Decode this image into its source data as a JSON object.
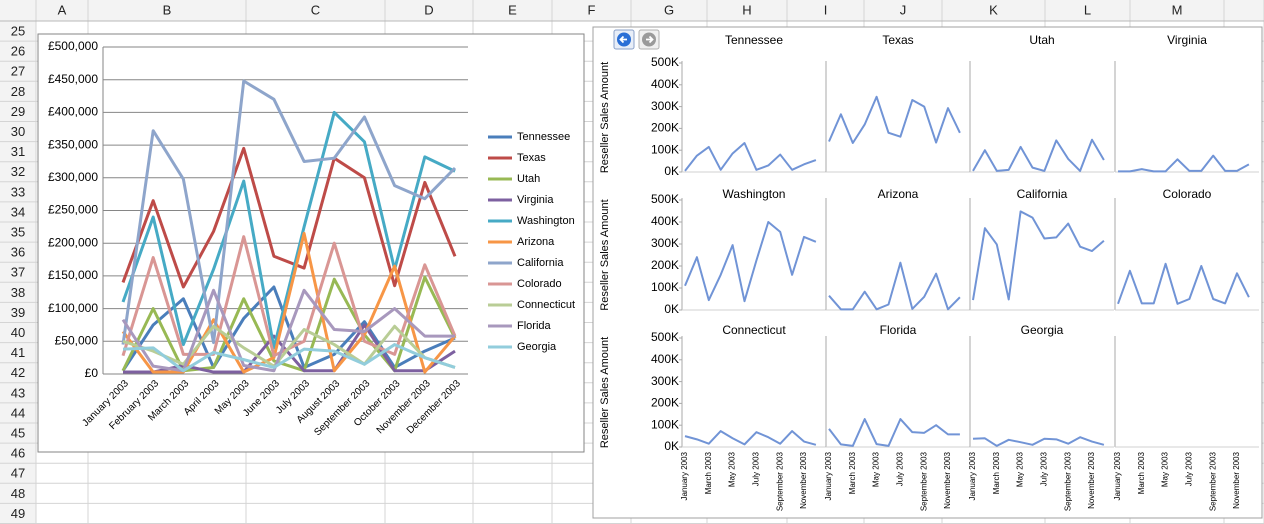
{
  "spreadsheet": {
    "columns": [
      "A",
      "B",
      "C",
      "D",
      "E",
      "F",
      "G",
      "H",
      "I",
      "J",
      "K",
      "L",
      "M"
    ],
    "rows": [
      25,
      26,
      27,
      28,
      29,
      30,
      31,
      32,
      33,
      34,
      35,
      36,
      37,
      38,
      39,
      40,
      41,
      42,
      43,
      44,
      45,
      46,
      47,
      48,
      49
    ]
  },
  "chart_data": [
    {
      "type": "line",
      "legend": "right",
      "grid": true,
      "categories": [
        "January 2003",
        "February 2003",
        "March 2003",
        "April 2003",
        "May 2003",
        "June 2003",
        "July 2003",
        "August 2003",
        "September 2003",
        "October 2003",
        "November 2003",
        "December 2003"
      ],
      "ylim": [
        0,
        500000
      ],
      "yticks": [
        {
          "value": 0,
          "label": "£0"
        },
        {
          "value": 50000,
          "label": "£50,000"
        },
        {
          "value": 100000,
          "label": "£100,000"
        },
        {
          "value": 150000,
          "label": "£150,000"
        },
        {
          "value": 200000,
          "label": "£200,000"
        },
        {
          "value": 250000,
          "label": "£250,000"
        },
        {
          "value": 300000,
          "label": "£300,000"
        },
        {
          "value": 350000,
          "label": "£350,000"
        },
        {
          "value": 400000,
          "label": "£400,000"
        },
        {
          "value": 450000,
          "label": "£450,000"
        },
        {
          "value": 500000,
          "label": "£500,000"
        }
      ],
      "series": [
        {
          "name": "Tennessee",
          "color": "#4a7ebb",
          "values": [
            5000,
            75000,
            115000,
            10000,
            85000,
            133000,
            10000,
            30000,
            80000,
            10000,
            35000,
            55000
          ]
        },
        {
          "name": "Texas",
          "color": "#be4b48",
          "values": [
            140000,
            265000,
            133000,
            218000,
            345000,
            180000,
            162000,
            330000,
            300000,
            135000,
            293000,
            180000
          ]
        },
        {
          "name": "Utah",
          "color": "#98b954",
          "values": [
            5000,
            100000,
            5000,
            10000,
            115000,
            20000,
            5000,
            145000,
            60000,
            5000,
            148000,
            55000
          ]
        },
        {
          "name": "Virginia",
          "color": "#7d60a0",
          "values": [
            3000,
            3000,
            13000,
            3000,
            3000,
            58000,
            5000,
            5000,
            75000,
            5000,
            5000,
            35000
          ]
        },
        {
          "name": "Washington",
          "color": "#46aac5",
          "values": [
            110000,
            240000,
            45000,
            160000,
            295000,
            40000,
            225000,
            400000,
            355000,
            160000,
            332000,
            310000
          ]
        },
        {
          "name": "Arizona",
          "color": "#f79646",
          "values": [
            65000,
            3000,
            3000,
            83000,
            3000,
            25000,
            215000,
            5000,
            60000,
            165000,
            3000,
            58000
          ]
        },
        {
          "name": "California",
          "color": "#8ea5cb",
          "values": [
            45000,
            372000,
            298000,
            48000,
            448000,
            420000,
            325000,
            330000,
            393000,
            288000,
            268000,
            315000
          ]
        },
        {
          "name": "Colorado",
          "color": "#d99694",
          "values": [
            28000,
            178000,
            30000,
            30000,
            210000,
            28000,
            50000,
            200000,
            50000,
            30000,
            167000,
            58000
          ]
        },
        {
          "name": "Connecticut",
          "color": "#b9cd96",
          "values": [
            50000,
            35000,
            15000,
            73000,
            40000,
            12000,
            68000,
            45000,
            15000,
            73000,
            25000,
            10000
          ]
        },
        {
          "name": "Florida",
          "color": "#a898bd",
          "values": [
            83000,
            12000,
            5000,
            128000,
            13000,
            5000,
            128000,
            68000,
            65000,
            100000,
            58000,
            58000
          ]
        },
        {
          "name": "Georgia",
          "color": "#92cddc",
          "values": [
            38000,
            40000,
            5000,
            33000,
            22000,
            10000,
            38000,
            35000,
            15000,
            45000,
            25000,
            10000
          ]
        }
      ]
    },
    {
      "type": "small-multiples",
      "y_label": "Reseller Sales Amount",
      "color": "#7194d6",
      "categories": [
        "January 2003",
        null,
        "March 2003",
        null,
        "May 2003",
        null,
        "July 2003",
        null,
        "September 2003",
        null,
        "November 2003",
        null
      ],
      "ylim": [
        0,
        500000
      ],
      "yticks": [
        {
          "value": 0,
          "label": "0K"
        },
        {
          "value": 100000,
          "label": "100K"
        },
        {
          "value": 200000,
          "label": "200K"
        },
        {
          "value": 300000,
          "label": "300K"
        },
        {
          "value": 400000,
          "label": "400K"
        },
        {
          "value": 500000,
          "label": "500K"
        }
      ],
      "series": [
        {
          "name": "Tennessee",
          "values": [
            5000,
            75000,
            115000,
            10000,
            85000,
            133000,
            10000,
            30000,
            80000,
            10000,
            35000,
            55000
          ]
        },
        {
          "name": "Texas",
          "values": [
            140000,
            265000,
            133000,
            218000,
            345000,
            180000,
            162000,
            330000,
            300000,
            135000,
            293000,
            180000
          ]
        },
        {
          "name": "Utah",
          "values": [
            5000,
            100000,
            5000,
            10000,
            115000,
            20000,
            5000,
            145000,
            60000,
            5000,
            148000,
            55000
          ]
        },
        {
          "name": "Virginia",
          "values": [
            3000,
            3000,
            13000,
            3000,
            3000,
            58000,
            5000,
            5000,
            75000,
            5000,
            5000,
            35000
          ]
        },
        {
          "name": "Washington",
          "values": [
            110000,
            240000,
            45000,
            160000,
            295000,
            40000,
            225000,
            400000,
            355000,
            160000,
            332000,
            310000
          ]
        },
        {
          "name": "Arizona",
          "values": [
            65000,
            3000,
            3000,
            83000,
            3000,
            25000,
            215000,
            5000,
            60000,
            165000,
            3000,
            58000
          ]
        },
        {
          "name": "California",
          "values": [
            45000,
            372000,
            298000,
            48000,
            448000,
            420000,
            325000,
            330000,
            393000,
            288000,
            268000,
            315000
          ]
        },
        {
          "name": "Colorado",
          "values": [
            28000,
            178000,
            30000,
            30000,
            210000,
            28000,
            50000,
            200000,
            50000,
            30000,
            167000,
            58000
          ]
        },
        {
          "name": "Connecticut",
          "values": [
            50000,
            35000,
            15000,
            73000,
            40000,
            12000,
            68000,
            45000,
            15000,
            73000,
            25000,
            10000
          ]
        },
        {
          "name": "Florida",
          "values": [
            83000,
            12000,
            5000,
            128000,
            13000,
            5000,
            128000,
            68000,
            65000,
            100000,
            58000,
            58000
          ]
        },
        {
          "name": "Georgia",
          "values": [
            38000,
            40000,
            5000,
            33000,
            22000,
            10000,
            38000,
            35000,
            15000,
            45000,
            25000,
            10000
          ]
        }
      ]
    }
  ]
}
